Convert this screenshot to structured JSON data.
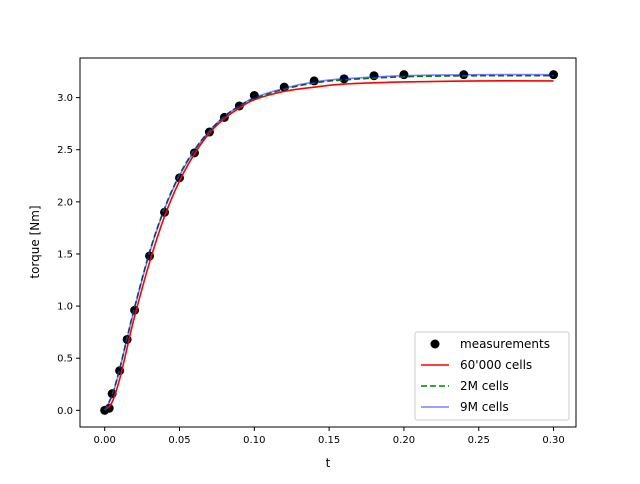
{
  "chart_data": {
    "type": "line",
    "title": "",
    "xlabel": "t",
    "ylabel": "torque [Nm]",
    "xlim": [
      -0.0165,
      0.315
    ],
    "ylim": [
      -0.16,
      3.38
    ],
    "xticks": [
      0.0,
      0.05,
      0.1,
      0.15,
      0.2,
      0.25,
      0.3
    ],
    "xtick_labels": [
      "0.00",
      "0.05",
      "0.10",
      "0.15",
      "0.20",
      "0.25",
      "0.30"
    ],
    "yticks": [
      0.0,
      0.5,
      1.0,
      1.5,
      2.0,
      2.5,
      3.0
    ],
    "ytick_labels": [
      "0.0",
      "0.5",
      "1.0",
      "1.5",
      "2.0",
      "2.5",
      "3.0"
    ],
    "grid": false,
    "legend_position": "bottom-right",
    "measurements": {
      "name": "measurements",
      "color": "#000000",
      "x": [
        0,
        0.003,
        0.005,
        0.01,
        0.015,
        0.02,
        0.03,
        0.04,
        0.05,
        0.06,
        0.07,
        0.08,
        0.09,
        0.1,
        0.12,
        0.14,
        0.16,
        0.18,
        0.2,
        0.24,
        0.3
      ],
      "y": [
        0,
        0.02,
        0.16,
        0.38,
        0.68,
        0.96,
        1.48,
        1.9,
        2.23,
        2.47,
        2.67,
        2.81,
        2.92,
        3.02,
        3.1,
        3.16,
        3.18,
        3.21,
        3.22,
        3.22,
        3.22
      ]
    },
    "x": [
      0,
      0.005,
      0.01,
      0.015,
      0.02,
      0.03,
      0.04,
      0.05,
      0.06,
      0.07,
      0.08,
      0.09,
      0.1,
      0.12,
      0.14,
      0.16,
      0.2,
      0.25,
      0.3
    ],
    "series": [
      {
        "name": "60'000 cells",
        "color": "#ff0000",
        "dash": "solid",
        "opacity": 1,
        "values": [
          0,
          0.08,
          0.3,
          0.6,
          0.9,
          1.42,
          1.86,
          2.2,
          2.46,
          2.66,
          2.8,
          2.9,
          2.98,
          3.06,
          3.1,
          3.13,
          3.15,
          3.16,
          3.16
        ]
      },
      {
        "name": "2M cells",
        "color": "#008000",
        "dash": "dashed",
        "opacity": 1,
        "values": [
          0,
          0.15,
          0.4,
          0.7,
          0.99,
          1.52,
          1.94,
          2.26,
          2.5,
          2.68,
          2.82,
          2.92,
          2.99,
          3.08,
          3.14,
          3.17,
          3.2,
          3.21,
          3.21
        ]
      },
      {
        "name": "9M cells",
        "color": "#0000ff",
        "dash": "solid",
        "opacity": 0.5,
        "values": [
          0,
          0.14,
          0.39,
          0.69,
          0.98,
          1.51,
          1.93,
          2.25,
          2.49,
          2.68,
          2.82,
          2.92,
          3.0,
          3.09,
          3.15,
          3.18,
          3.21,
          3.22,
          3.22
        ]
      }
    ]
  }
}
